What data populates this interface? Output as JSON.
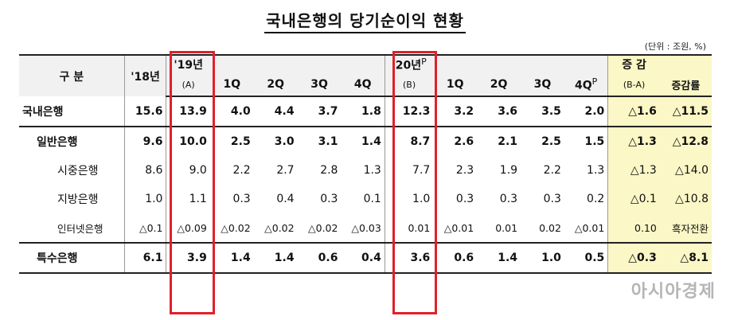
{
  "title": "국내은행의 당기순이익 현황",
  "unit": "(단위 : 조원, %)",
  "header": {
    "category": "구 분",
    "y18": "'18년",
    "y19": "'19년",
    "y19_sub": "(A)",
    "y20": "'20년",
    "y20_sup": "P",
    "y20_sub": "(B)",
    "change": "증 감",
    "change_sub": "(B-A)",
    "rate": "증감률",
    "q1": "1Q",
    "q2": "2Q",
    "q3": "3Q",
    "q4": "4Q",
    "q4p": "4Q",
    "q4p_sup": "P"
  },
  "rows": [
    {
      "name": "국내은행",
      "y18": "15.6",
      "y19": "13.9",
      "q": [
        "4.0",
        "4.4",
        "3.7",
        "1.8"
      ],
      "y20": "12.3",
      "q20": [
        "3.2",
        "3.6",
        "3.5",
        "2.0"
      ],
      "change": "△1.6",
      "rate": "△11.5"
    },
    {
      "name": "일반은행",
      "y18": "9.6",
      "y19": "10.0",
      "q": [
        "2.5",
        "3.0",
        "3.1",
        "1.4"
      ],
      "y20": "8.7",
      "q20": [
        "2.6",
        "2.1",
        "2.5",
        "1.5"
      ],
      "change": "△1.3",
      "rate": "△12.8"
    },
    {
      "name": "시중은행",
      "y18": "8.6",
      "y19": "9.0",
      "q": [
        "2.2",
        "2.7",
        "2.8",
        "1.3"
      ],
      "y20": "7.7",
      "q20": [
        "2.3",
        "1.9",
        "2.2",
        "1.3"
      ],
      "change": "△1.3",
      "rate": "△14.0"
    },
    {
      "name": "지방은행",
      "y18": "1.0",
      "y19": "1.1",
      "q": [
        "0.3",
        "0.4",
        "0.3",
        "0.1"
      ],
      "y20": "1.0",
      "q20": [
        "0.3",
        "0.3",
        "0.3",
        "0.2"
      ],
      "change": "△0.1",
      "rate": "△10.8"
    },
    {
      "name": "인터넷은행",
      "y18": "△0.1",
      "y19": "△0.09",
      "q": [
        "△0.02",
        "△0.02",
        "△0.02",
        "△0.03"
      ],
      "y20": "0.01",
      "q20": [
        "△0.01",
        "0.01",
        "0.02",
        "△0.01"
      ],
      "change": "0.10",
      "rate": "흑자전환"
    },
    {
      "name": "특수은행",
      "y18": "6.1",
      "y19": "3.9",
      "q": [
        "1.4",
        "1.4",
        "0.6",
        "0.4"
      ],
      "y20": "3.6",
      "q20": [
        "0.6",
        "1.4",
        "1.0",
        "0.5"
      ],
      "change": "△0.3",
      "rate": "△8.1"
    }
  ],
  "watermark": "아시아경제",
  "colors": {
    "highlight_box": "#e0202a",
    "change_bg": "#fbf7c6",
    "header_bg": "#f1f1f1"
  }
}
